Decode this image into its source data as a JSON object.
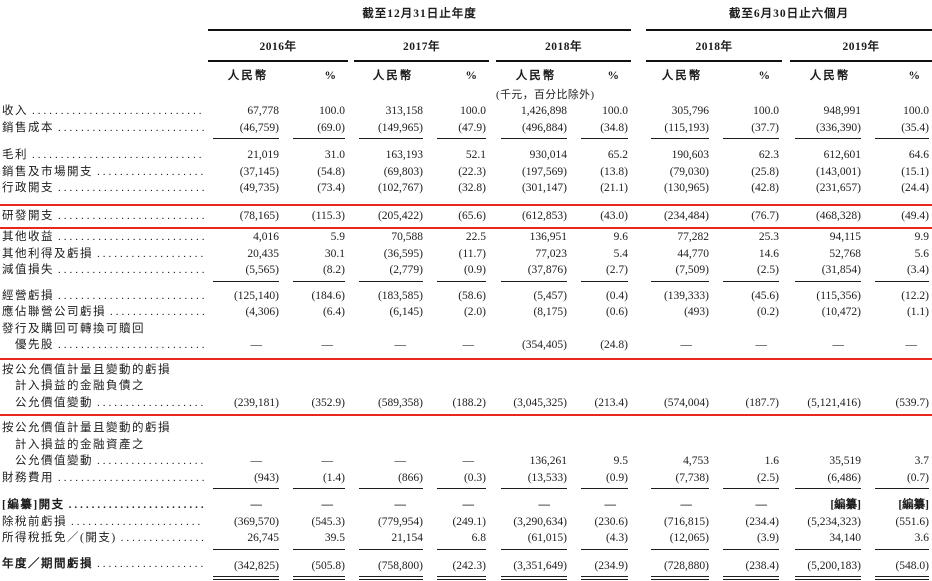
{
  "page": {
    "background_color": "#ffffff",
    "text_color": "#1c1c1c",
    "highlight_color": "#e8281c"
  },
  "table": {
    "groups": [
      {
        "title": "截至12月31日止年度",
        "years": [
          {
            "label": "2016年"
          },
          {
            "label": "2017年"
          },
          {
            "label": "2018年"
          }
        ]
      },
      {
        "title": "截至6月30日止六個月",
        "years": [
          {
            "label": "2018年"
          },
          {
            "label": "2019年"
          }
        ]
      }
    ],
    "currency_header": "人民幣",
    "percent_header": "%",
    "unit_note": "(千元，百分比除外)",
    "rows": [
      {
        "id": "revenue",
        "label_lines": [
          "收入"
        ],
        "values": [
          "67,778",
          "100.0",
          "313,158",
          "100.0",
          "1,426,898",
          "100.0",
          "305,796",
          "100.0",
          "948,991",
          "100.0"
        ]
      },
      {
        "id": "cost-of-sales",
        "label_lines": [
          "銷售成本"
        ],
        "rule_below": true,
        "values": [
          "(46,759)",
          "(69.0)",
          "(149,965)",
          "(47.9)",
          "(496,884)",
          "(34.8)",
          "(115,193)",
          "(37.7)",
          "(336,390)",
          "(35.4)"
        ]
      },
      {
        "id": "gross-profit",
        "label_lines": [
          "毛利"
        ],
        "gap_before": 8,
        "values": [
          "21,019",
          "31.0",
          "163,193",
          "52.1",
          "930,014",
          "65.2",
          "190,603",
          "62.3",
          "612,601",
          "64.6"
        ]
      },
      {
        "id": "selling-marketing-expenses",
        "label_lines": [
          "銷售及市場開支"
        ],
        "values": [
          "(37,145)",
          "(54.8)",
          "(69,803)",
          "(22.3)",
          "(197,569)",
          "(13.8)",
          "(79,030)",
          "(25.8)",
          "(143,001)",
          "(15.1)"
        ]
      },
      {
        "id": "administrative-expenses",
        "label_lines": [
          "行政開支"
        ],
        "values": [
          "(49,735)",
          "(73.4)",
          "(102,767)",
          "(32.8)",
          "(301,147)",
          "(21.1)",
          "(130,965)",
          "(42.8)",
          "(231,657)",
          "(24.4)"
        ]
      },
      {
        "id": "rd-expenses",
        "label_lines": [
          "研發開支"
        ],
        "highlighted": true,
        "gap_before": 9,
        "values": [
          "(78,165)",
          "(115.3)",
          "(205,422)",
          "(65.6)",
          "(612,853)",
          "(43.0)",
          "(234,484)",
          "(76.7)",
          "(468,328)",
          "(49.4)"
        ]
      },
      {
        "id": "other-income",
        "label_lines": [
          "其他收益"
        ],
        "gap_before": 2,
        "values": [
          "4,016",
          "5.9",
          "70,588",
          "22.5",
          "136,951",
          "9.6",
          "77,282",
          "25.3",
          "94,115",
          "9.9"
        ]
      },
      {
        "id": "other-gains-losses",
        "label_lines": [
          "其他利得及虧損"
        ],
        "values": [
          "20,435",
          "30.1",
          "(36,595)",
          "(11.7)",
          "77,023",
          "5.4",
          "44,770",
          "14.6",
          "52,768",
          "5.6"
        ]
      },
      {
        "id": "impairment-losses",
        "label_lines": [
          "減值損失"
        ],
        "rule_below": true,
        "values": [
          "(5,565)",
          "(8.2)",
          "(2,779)",
          "(0.9)",
          "(37,876)",
          "(2.7)",
          "(7,509)",
          "(2.5)",
          "(31,854)",
          "(3.4)"
        ]
      },
      {
        "id": "operating-loss",
        "label_lines": [
          "經營虧損"
        ],
        "gap_before": 6,
        "values": [
          "(125,140)",
          "(184.6)",
          "(183,585)",
          "(58.6)",
          "(5,457)",
          "(0.4)",
          "(139,333)",
          "(45.6)",
          "(115,356)",
          "(12.2)"
        ]
      },
      {
        "id": "share-of-losses-of-associates",
        "label_lines": [
          "應佔聯營公司虧損"
        ],
        "values": [
          "(4,306)",
          "(6.4)",
          "(6,145)",
          "(2.0)",
          "(8,175)",
          "(0.6)",
          "(493)",
          "(0.2)",
          "(10,472)",
          "(1.1)"
        ]
      },
      {
        "id": "issue-repurchase-preferred-shares",
        "label_lines": [
          "發行及購回可轉換可贖回",
          "優先股"
        ],
        "values": [
          "—",
          "—",
          "—",
          "—",
          "(354,405)",
          "(24.8)",
          "—",
          "—",
          "—",
          "—"
        ]
      },
      {
        "id": "fv-change-financial-liabilities",
        "highlighted": true,
        "gap_before": 6,
        "label_lines": [
          "按公允價值計量且變動的虧損",
          "計入損益的金融負債之",
          "公允價值變動"
        ],
        "values": [
          "(239,181)",
          "(352.9)",
          "(589,358)",
          "(188.2)",
          "(3,045,325)",
          "(213.4)",
          "(574,004)",
          "(187.7)",
          "(5,121,416)",
          "(539.7)"
        ]
      },
      {
        "id": "fv-change-financial-assets",
        "gap_before": 6,
        "label_lines": [
          "按公允價值計量且變動的虧損",
          "計入損益的金融資產之",
          "公允價值變動"
        ],
        "values": [
          "—",
          "—",
          "—",
          "—",
          "136,261",
          "9.5",
          "4,753",
          "1.6",
          "35,519",
          "3.7"
        ]
      },
      {
        "id": "finance-costs",
        "label_lines": [
          "財務費用"
        ],
        "rule_below": true,
        "values": [
          "(943)",
          "(1.4)",
          "(866)",
          "(0.3)",
          "(13,533)",
          "(0.9)",
          "(7,738)",
          "(2.5)",
          "(6,486)",
          "(0.7)"
        ]
      },
      {
        "id": "redacted-expenses",
        "label_lines": [
          "[編纂]開支"
        ],
        "bold": true,
        "gap_before": 8,
        "values": [
          "—",
          "—",
          "—",
          "—",
          "—",
          "—",
          "—",
          "—",
          "[編纂]",
          "[編纂]"
        ]
      },
      {
        "id": "loss-before-tax",
        "label_lines": [
          "除稅前虧損"
        ],
        "values": [
          "(369,570)",
          "(545.3)",
          "(779,954)",
          "(249.1)",
          "(3,290,634)",
          "(230.6)",
          "(716,815)",
          "(234.4)",
          "(5,234,323)",
          "(551.6)"
        ]
      },
      {
        "id": "income-tax-credit-expense",
        "label_lines": [
          "所得稅抵免／(開支)"
        ],
        "rule_below": true,
        "values": [
          "26,745",
          "39.5",
          "21,154",
          "6.8",
          "(61,015)",
          "(4.3)",
          "(12,065)",
          "(3.9)",
          "34,140",
          "3.6"
        ]
      },
      {
        "id": "loss-for-year-period",
        "label_lines": [
          "年度／期間虧損"
        ],
        "bold_label": true,
        "double_rule_below": true,
        "gap_before": 6,
        "values": [
          "(342,825)",
          "(505.8)",
          "(758,800)",
          "(242.3)",
          "(3,351,649)",
          "(234.9)",
          "(728,880)",
          "(238.4)",
          "(5,200,183)",
          "(548.0)"
        ]
      }
    ]
  }
}
